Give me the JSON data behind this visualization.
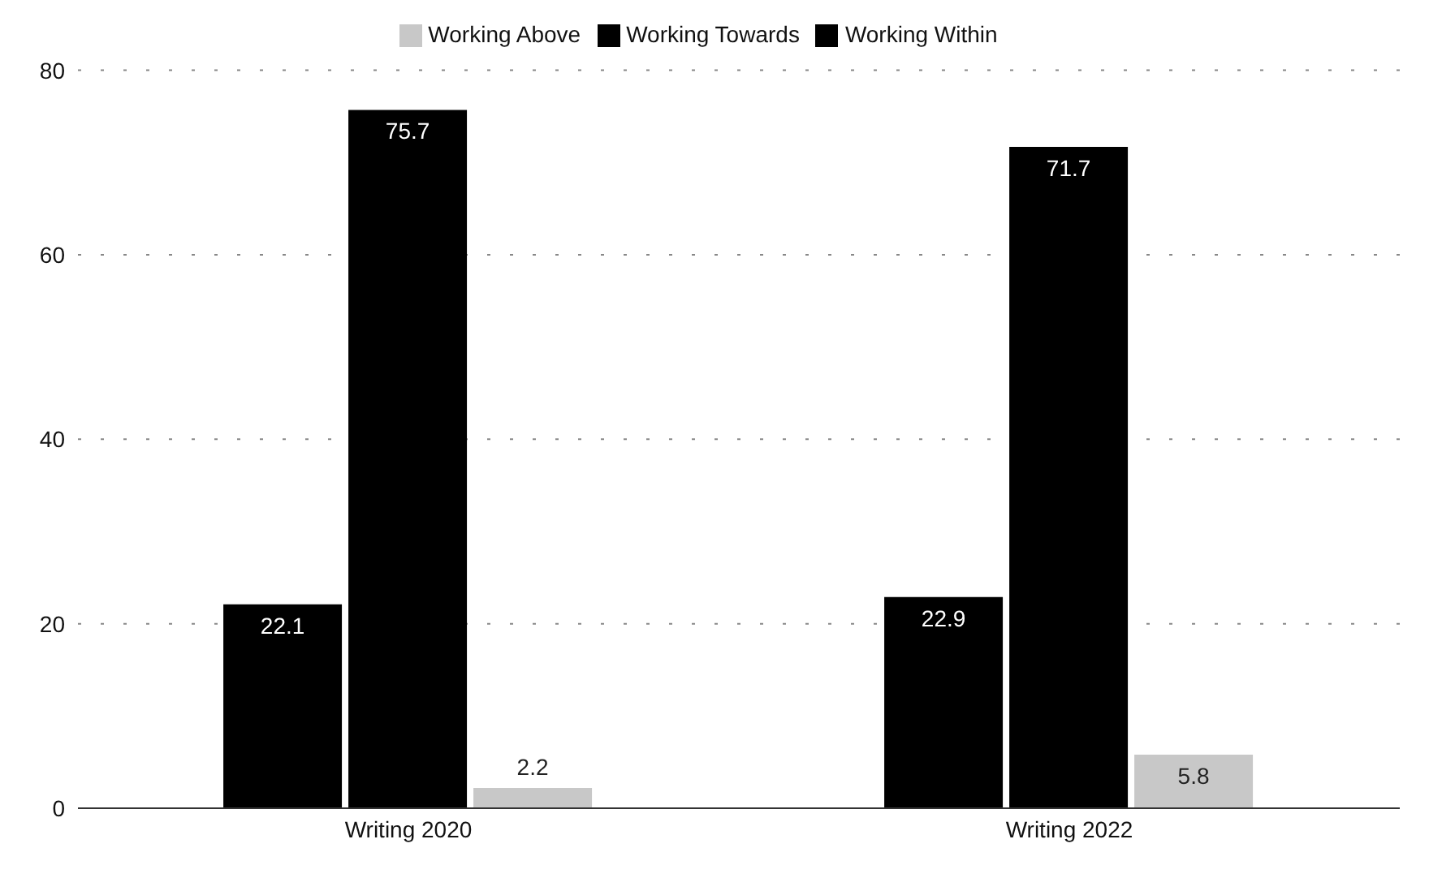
{
  "chart_data": {
    "type": "bar",
    "categories": [
      "Writing 2020",
      "Writing 2022"
    ],
    "series": [
      {
        "name": "Working Towards",
        "color": "#000000",
        "values": [
          22.1,
          22.9
        ]
      },
      {
        "name": "Working Within",
        "color": "#000000",
        "values": [
          75.7,
          71.7
        ]
      },
      {
        "name": "Working Above",
        "color": "#c8c8c8",
        "values": [
          2.2,
          5.8
        ]
      }
    ],
    "ylim": [
      0,
      80
    ],
    "yticks": [
      0,
      20,
      40,
      60,
      80
    ],
    "grid": "y",
    "legend": "top",
    "data_labels": true
  }
}
